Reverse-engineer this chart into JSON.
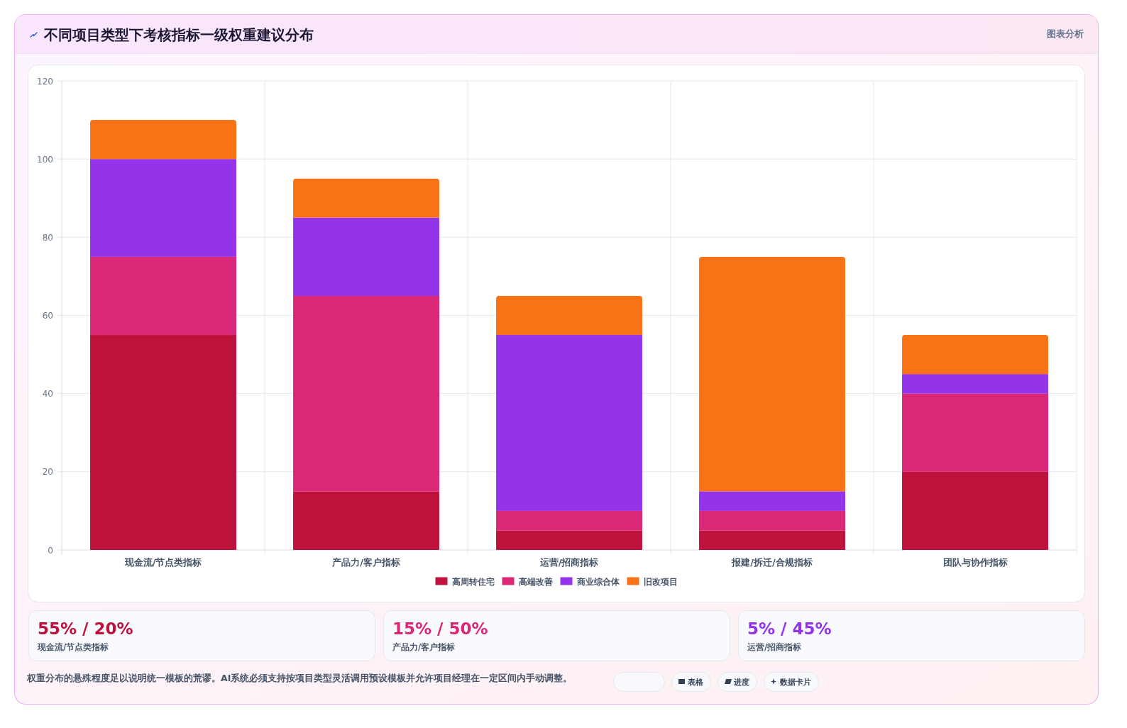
{
  "chart_data": {
    "type": "bar",
    "title": "不同项目类型下考核指标一级权重建议分布",
    "categories": [
      "现金流/节点类指标",
      "产品力/客户指标",
      "运营/招商指标",
      "报建/拆迁/合规指标",
      "团队与协作指标"
    ],
    "series": [
      {
        "name": "高周转住宅",
        "color": "#be123c",
        "values": [
          55,
          15,
          5,
          5,
          20
        ]
      },
      {
        "name": "高端改善",
        "color": "#db2777",
        "values": [
          20,
          50,
          5,
          5,
          20
        ]
      },
      {
        "name": "商业综合体",
        "color": "#9333ea",
        "values": [
          25,
          20,
          45,
          5,
          5
        ]
      },
      {
        "name": "旧改项目",
        "color": "#f97316",
        "values": [
          10,
          10,
          10,
          60,
          10
        ]
      }
    ],
    "stacked": true,
    "ylim": [
      0,
      120
    ],
    "yticks": [
      0,
      20,
      40,
      60,
      80,
      100,
      120
    ],
    "grid": true,
    "legend": "bottom",
    "annotations": [
      "图表分析",
      "55% / 20%",
      "现金流/节点类指标",
      "15% / 50%",
      "产品力/客户指标",
      "5% / 45%",
      "运营/招商指标",
      "权重分布的悬殊程度足以说明统一模板的荒谬。AI系统必须支持按项目类型灵活调用预设模板并允许项目经理在一定区间内手动调整。",
      "表格",
      "进度",
      "数据卡片"
    ]
  }
}
